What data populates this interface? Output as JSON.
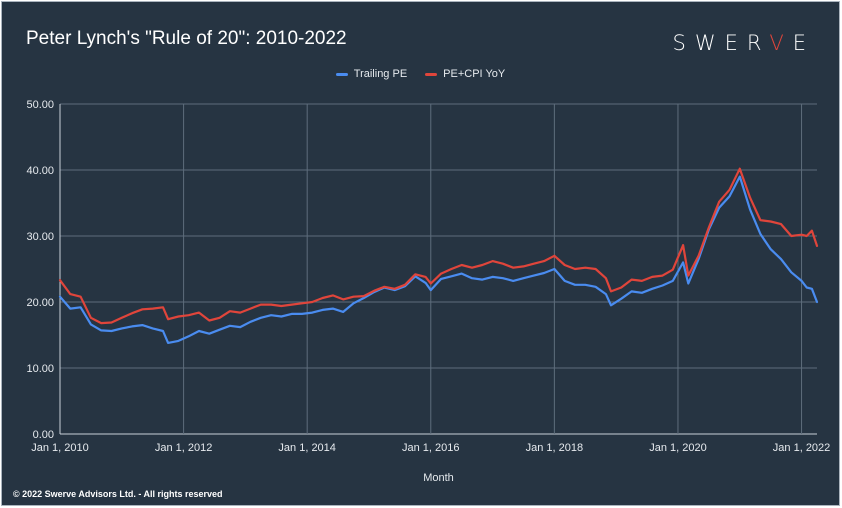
{
  "title": "Peter Lynch's \"Rule of 20\": 2010-2022",
  "brand": {
    "prefix": "SWER",
    "accent": "V",
    "suffix": "E"
  },
  "footer": "© 2022 Swerve Advisors Ltd. - All rights reserved",
  "colors": {
    "background": "#263442",
    "series_trailing": "#4a8cf0",
    "series_pecpi": "#e0453b",
    "grid": "#5e6d7c"
  },
  "chart_data": {
    "type": "line",
    "title": "Peter Lynch's \"Rule of 20\": 2010-2022",
    "xlabel": "Month",
    "ylabel": "",
    "ylim": [
      0,
      50
    ],
    "xlim": [
      "2010-01-01",
      "2022-04-01"
    ],
    "yticks": [
      "0.00",
      "10.00",
      "20.00",
      "30.00",
      "40.00",
      "50.00"
    ],
    "xticks": [
      "Jan 1, 2010",
      "Jan 1, 2012",
      "Jan 1, 2014",
      "Jan 1, 2016",
      "Jan 1, 2018",
      "Jan 1, 2020",
      "Jan 1, 2022"
    ],
    "legend": "top-center",
    "grid": true,
    "series": [
      {
        "name": "Trailing PE",
        "color": "#4a8cf0",
        "points": [
          [
            "2010-01",
            20.8
          ],
          [
            "2010-03",
            19.0
          ],
          [
            "2010-05",
            19.2
          ],
          [
            "2010-07",
            16.6
          ],
          [
            "2010-09",
            15.7
          ],
          [
            "2010-11",
            15.6
          ],
          [
            "2011-01",
            16.0
          ],
          [
            "2011-03",
            16.3
          ],
          [
            "2011-05",
            16.5
          ],
          [
            "2011-07",
            16.0
          ],
          [
            "2011-09",
            15.6
          ],
          [
            "2011-10",
            13.8
          ],
          [
            "2011-12",
            14.1
          ],
          [
            "2012-02",
            14.8
          ],
          [
            "2012-04",
            15.6
          ],
          [
            "2012-06",
            15.2
          ],
          [
            "2012-08",
            15.8
          ],
          [
            "2012-10",
            16.4
          ],
          [
            "2012-12",
            16.2
          ],
          [
            "2013-02",
            17.0
          ],
          [
            "2013-04",
            17.6
          ],
          [
            "2013-06",
            18.0
          ],
          [
            "2013-08",
            17.8
          ],
          [
            "2013-10",
            18.2
          ],
          [
            "2013-12",
            18.2
          ],
          [
            "2014-02",
            18.4
          ],
          [
            "2014-04",
            18.8
          ],
          [
            "2014-06",
            19.0
          ],
          [
            "2014-08",
            18.5
          ],
          [
            "2014-10",
            19.8
          ],
          [
            "2014-12",
            20.6
          ],
          [
            "2015-02",
            21.5
          ],
          [
            "2015-04",
            22.2
          ],
          [
            "2015-06",
            21.8
          ],
          [
            "2015-08",
            22.4
          ],
          [
            "2015-10",
            23.9
          ],
          [
            "2015-12",
            22.9
          ],
          [
            "2016-01",
            21.8
          ],
          [
            "2016-03",
            23.5
          ],
          [
            "2016-05",
            23.9
          ],
          [
            "2016-07",
            24.3
          ],
          [
            "2016-09",
            23.6
          ],
          [
            "2016-11",
            23.4
          ],
          [
            "2017-01",
            23.8
          ],
          [
            "2017-03",
            23.6
          ],
          [
            "2017-05",
            23.2
          ],
          [
            "2017-07",
            23.6
          ],
          [
            "2017-09",
            24.0
          ],
          [
            "2017-11",
            24.4
          ],
          [
            "2018-01",
            25.0
          ],
          [
            "2018-03",
            23.2
          ],
          [
            "2018-05",
            22.6
          ],
          [
            "2018-07",
            22.6
          ],
          [
            "2018-09",
            22.3
          ],
          [
            "2018-11",
            21.2
          ],
          [
            "2018-12",
            19.5
          ],
          [
            "2019-02",
            20.5
          ],
          [
            "2019-04",
            21.6
          ],
          [
            "2019-06",
            21.4
          ],
          [
            "2019-08",
            22.0
          ],
          [
            "2019-10",
            22.5
          ],
          [
            "2019-12",
            23.2
          ],
          [
            "2020-02",
            26.0
          ],
          [
            "2020-03",
            22.8
          ],
          [
            "2020-05",
            26.5
          ],
          [
            "2020-07",
            31.0
          ],
          [
            "2020-09",
            34.3
          ],
          [
            "2020-11",
            36.0
          ],
          [
            "2021-01",
            39.0
          ],
          [
            "2021-03",
            34.0
          ],
          [
            "2021-05",
            30.3
          ],
          [
            "2021-07",
            28.0
          ],
          [
            "2021-09",
            26.5
          ],
          [
            "2021-11",
            24.5
          ],
          [
            "2022-01",
            23.2
          ],
          [
            "2022-02",
            22.2
          ],
          [
            "2022-03",
            22.0
          ],
          [
            "2022-04",
            20.0
          ]
        ]
      },
      {
        "name": "PE+CPI YoY",
        "color": "#e0453b",
        "points": [
          [
            "2010-01",
            23.3
          ],
          [
            "2010-03",
            21.2
          ],
          [
            "2010-05",
            20.8
          ],
          [
            "2010-07",
            17.6
          ],
          [
            "2010-09",
            16.8
          ],
          [
            "2010-11",
            16.9
          ],
          [
            "2011-01",
            17.6
          ],
          [
            "2011-03",
            18.3
          ],
          [
            "2011-05",
            18.9
          ],
          [
            "2011-07",
            19.0
          ],
          [
            "2011-09",
            19.2
          ],
          [
            "2011-10",
            17.4
          ],
          [
            "2011-12",
            17.8
          ],
          [
            "2012-02",
            18.0
          ],
          [
            "2012-04",
            18.4
          ],
          [
            "2012-06",
            17.2
          ],
          [
            "2012-08",
            17.6
          ],
          [
            "2012-10",
            18.6
          ],
          [
            "2012-12",
            18.4
          ],
          [
            "2013-02",
            19.0
          ],
          [
            "2013-04",
            19.6
          ],
          [
            "2013-06",
            19.6
          ],
          [
            "2013-08",
            19.4
          ],
          [
            "2013-10",
            19.6
          ],
          [
            "2013-12",
            19.8
          ],
          [
            "2014-02",
            20.0
          ],
          [
            "2014-04",
            20.6
          ],
          [
            "2014-06",
            21.0
          ],
          [
            "2014-08",
            20.4
          ],
          [
            "2014-10",
            20.8
          ],
          [
            "2014-12",
            20.9
          ],
          [
            "2015-02",
            21.7
          ],
          [
            "2015-04",
            22.3
          ],
          [
            "2015-06",
            22.0
          ],
          [
            "2015-08",
            22.6
          ],
          [
            "2015-10",
            24.2
          ],
          [
            "2015-12",
            23.8
          ],
          [
            "2016-01",
            22.8
          ],
          [
            "2016-03",
            24.3
          ],
          [
            "2016-05",
            25.0
          ],
          [
            "2016-07",
            25.6
          ],
          [
            "2016-09",
            25.2
          ],
          [
            "2016-11",
            25.6
          ],
          [
            "2017-01",
            26.2
          ],
          [
            "2017-03",
            25.8
          ],
          [
            "2017-05",
            25.2
          ],
          [
            "2017-07",
            25.4
          ],
          [
            "2017-09",
            25.8
          ],
          [
            "2017-11",
            26.2
          ],
          [
            "2018-01",
            27.0
          ],
          [
            "2018-03",
            25.6
          ],
          [
            "2018-05",
            25.0
          ],
          [
            "2018-07",
            25.2
          ],
          [
            "2018-09",
            25.0
          ],
          [
            "2018-11",
            23.6
          ],
          [
            "2018-12",
            21.6
          ],
          [
            "2019-02",
            22.2
          ],
          [
            "2019-04",
            23.4
          ],
          [
            "2019-06",
            23.2
          ],
          [
            "2019-08",
            23.8
          ],
          [
            "2019-10",
            24.0
          ],
          [
            "2019-12",
            24.9
          ],
          [
            "2020-02",
            28.6
          ],
          [
            "2020-03",
            24.0
          ],
          [
            "2020-05",
            27.0
          ],
          [
            "2020-07",
            31.3
          ],
          [
            "2020-09",
            35.2
          ],
          [
            "2020-11",
            37.0
          ],
          [
            "2021-01",
            40.2
          ],
          [
            "2021-03",
            35.8
          ],
          [
            "2021-05",
            32.4
          ],
          [
            "2021-07",
            32.2
          ],
          [
            "2021-09",
            31.8
          ],
          [
            "2021-11",
            30.0
          ],
          [
            "2022-01",
            30.2
          ],
          [
            "2022-02",
            30.0
          ],
          [
            "2022-03",
            30.8
          ],
          [
            "2022-04",
            28.5
          ]
        ]
      }
    ]
  }
}
